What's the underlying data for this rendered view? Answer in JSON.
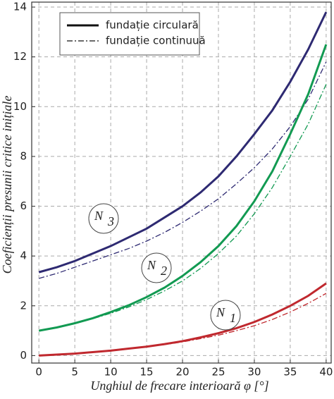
{
  "chart_data": {
    "type": "line",
    "x": [
      0,
      2.5,
      5,
      7.5,
      10,
      12.5,
      15,
      17.5,
      20,
      22.5,
      25,
      27.5,
      30,
      32.5,
      35,
      37.5,
      40
    ],
    "series": [
      {
        "name": "fundație circulară",
        "color": "#2e2a72",
        "dash": "solid",
        "values": [
          3.35,
          3.55,
          3.8,
          4.1,
          4.4,
          4.75,
          5.1,
          5.55,
          6.0,
          6.55,
          7.2,
          8.0,
          8.9,
          9.85,
          11.0,
          12.3,
          13.8
        ]
      },
      {
        "name": "fundație continuuă",
        "color": "#2e2a72",
        "dash": "dashdot",
        "values": [
          3.1,
          3.3,
          3.55,
          3.8,
          4.05,
          4.3,
          4.6,
          4.95,
          5.35,
          5.8,
          6.3,
          6.9,
          7.55,
          8.3,
          9.2,
          10.3,
          11.8
        ]
      },
      {
        "name": "fundație circulară",
        "color": "#129a52",
        "dash": "solid",
        "values": [
          1.0,
          1.13,
          1.3,
          1.5,
          1.75,
          2.02,
          2.35,
          2.73,
          3.2,
          3.75,
          4.4,
          5.2,
          6.2,
          7.4,
          8.9,
          10.5,
          12.5
        ]
      },
      {
        "name": "fundație continuuă",
        "color": "#129a52",
        "dash": "dashdot",
        "values": [
          1.0,
          1.13,
          1.3,
          1.48,
          1.7,
          1.95,
          2.25,
          2.6,
          3.0,
          3.5,
          4.1,
          4.8,
          5.7,
          6.75,
          8.0,
          9.3,
          10.9
        ]
      },
      {
        "name": "fundație circulară",
        "color": "#c0282e",
        "dash": "solid",
        "values": [
          0,
          0.04,
          0.08,
          0.14,
          0.2,
          0.28,
          0.36,
          0.46,
          0.58,
          0.73,
          0.9,
          1.1,
          1.35,
          1.65,
          2.0,
          2.4,
          2.9
        ]
      },
      {
        "name": "fundație continuuă",
        "color": "#c0282e",
        "dash": "dashdot",
        "values": [
          0,
          0.04,
          0.08,
          0.14,
          0.2,
          0.27,
          0.35,
          0.44,
          0.55,
          0.68,
          0.82,
          1.0,
          1.2,
          1.45,
          1.75,
          2.1,
          2.5
        ]
      }
    ],
    "annotations": [
      {
        "label": "N",
        "subscript": "3"
      },
      {
        "label": "N",
        "subscript": "2"
      },
      {
        "label": "N",
        "subscript": "1"
      }
    ],
    "xlabel": "Unghiul de frecare interioară φ [°]",
    "ylabel": "Coeficienții presunii critice inițiale",
    "xlim": [
      -1,
      40.7
    ],
    "ylim": [
      -0.3,
      14.2
    ],
    "xticks": [
      0,
      5,
      10,
      15,
      20,
      25,
      30,
      35,
      40
    ],
    "yticks": [
      0,
      2,
      4,
      6,
      8,
      10,
      12,
      14
    ],
    "grid": true
  }
}
